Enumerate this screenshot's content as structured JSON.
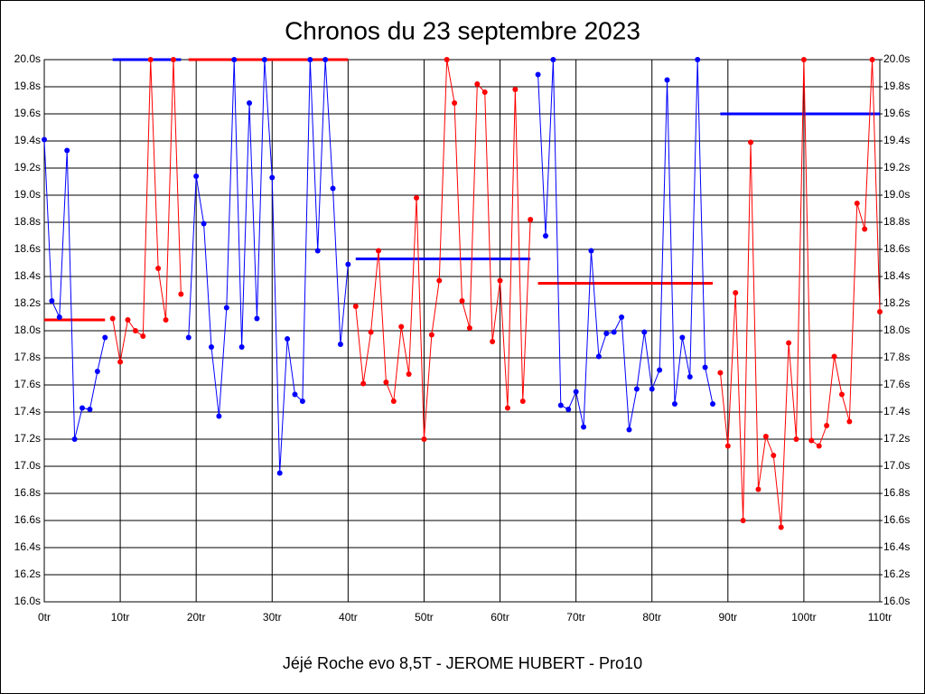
{
  "chart_data": {
    "type": "line",
    "title": "Chronos du 23 septembre 2023",
    "x_label": "Jéjé Roche evo 8,5T - JEROME HUBERT - Pro10",
    "xlim": [
      0,
      110
    ],
    "xticks": [
      {
        "value": 0,
        "label": "0tr"
      },
      {
        "value": 10,
        "label": "10tr"
      },
      {
        "value": 20,
        "label": "20tr"
      },
      {
        "value": 30,
        "label": "30tr"
      },
      {
        "value": 40,
        "label": "40tr"
      },
      {
        "value": 50,
        "label": "50tr"
      },
      {
        "value": 60,
        "label": "60tr"
      },
      {
        "value": 70,
        "label": "70tr"
      },
      {
        "value": 80,
        "label": "80tr"
      },
      {
        "value": 90,
        "label": "90tr"
      },
      {
        "value": 100,
        "label": "100tr"
      },
      {
        "value": 110,
        "label": "110tr"
      }
    ],
    "ylim": [
      16.0,
      20.0
    ],
    "yticks": [
      {
        "value": 16.0,
        "label": "16.0s"
      },
      {
        "value": 16.2,
        "label": "16.2s"
      },
      {
        "value": 16.4,
        "label": "16.4s"
      },
      {
        "value": 16.6,
        "label": "16.6s"
      },
      {
        "value": 16.8,
        "label": "16.8s"
      },
      {
        "value": 17.0,
        "label": "17.0s"
      },
      {
        "value": 17.2,
        "label": "17.2s"
      },
      {
        "value": 17.4,
        "label": "17.4s"
      },
      {
        "value": 17.6,
        "label": "17.6s"
      },
      {
        "value": 17.8,
        "label": "17.8s"
      },
      {
        "value": 18.0,
        "label": "18.0s"
      },
      {
        "value": 18.2,
        "label": "18.2s"
      },
      {
        "value": 18.4,
        "label": "18.4s"
      },
      {
        "value": 18.6,
        "label": "18.6s"
      },
      {
        "value": 18.8,
        "label": "18.8s"
      },
      {
        "value": 19.0,
        "label": "19.0s"
      },
      {
        "value": 19.2,
        "label": "19.2s"
      },
      {
        "value": 19.4,
        "label": "19.4s"
      },
      {
        "value": 19.6,
        "label": "19.6s"
      },
      {
        "value": 19.8,
        "label": "19.8s"
      },
      {
        "value": 20.0,
        "label": "20.0s"
      }
    ],
    "y2lim": [
      16.0,
      20.0
    ],
    "y2ticks": [
      {
        "value": 16.0,
        "label": "16.0s"
      },
      {
        "value": 16.2,
        "label": "16.2s"
      },
      {
        "value": 16.4,
        "label": "16.4s"
      },
      {
        "value": 16.6,
        "label": "16.6s"
      },
      {
        "value": 16.8,
        "label": "16.8s"
      },
      {
        "value": 17.0,
        "label": "17.0s"
      },
      {
        "value": 17.2,
        "label": "17.2s"
      },
      {
        "value": 17.4,
        "label": "17.4s"
      },
      {
        "value": 17.6,
        "label": "17.6s"
      },
      {
        "value": 17.8,
        "label": "17.8s"
      },
      {
        "value": 18.0,
        "label": "18.0s"
      },
      {
        "value": 18.2,
        "label": "18.2s"
      },
      {
        "value": 18.4,
        "label": "18.4s"
      },
      {
        "value": 18.6,
        "label": "18.6s"
      },
      {
        "value": 18.8,
        "label": "18.8s"
      },
      {
        "value": 19.0,
        "label": "19.0s"
      },
      {
        "value": 19.2,
        "label": "19.2s"
      },
      {
        "value": 19.4,
        "label": "19.4s"
      },
      {
        "value": 19.6,
        "label": "19.6s"
      },
      {
        "value": 19.8,
        "label": "19.8s"
      },
      {
        "value": 20.0,
        "label": "20.0s"
      }
    ],
    "grid": true,
    "series": [
      {
        "color": "#0000ff",
        "x": [
          0,
          1,
          2,
          3,
          4,
          5,
          6,
          7,
          8
        ],
        "values": [
          19.41,
          18.22,
          18.1,
          19.33,
          17.2,
          17.43,
          17.42,
          17.7,
          17.95
        ]
      },
      {
        "color": "#ff0000",
        "x": [
          9,
          10,
          11,
          12,
          13,
          14,
          15,
          16,
          17,
          18
        ],
        "values": [
          18.09,
          17.77,
          18.08,
          18.0,
          17.96,
          20.0,
          18.46,
          18.08,
          20.0,
          18.27
        ]
      },
      {
        "color": "#0000ff",
        "x": [
          19,
          20,
          21,
          22,
          23,
          24,
          25,
          26,
          27,
          28,
          29,
          30,
          31,
          32,
          33,
          34,
          35,
          36,
          37,
          38,
          39,
          40
        ],
        "values": [
          17.95,
          19.14,
          18.79,
          17.88,
          17.37,
          18.17,
          20.0,
          17.88,
          19.68,
          18.09,
          20.0,
          19.13,
          16.95,
          17.94,
          17.53,
          17.48,
          20.0,
          18.59,
          20.0,
          19.05,
          17.9,
          18.49
        ]
      },
      {
        "color": "#ff0000",
        "x": [
          41,
          42,
          43,
          44,
          45,
          46,
          47,
          48,
          49,
          50,
          51,
          52,
          53,
          54,
          55,
          56,
          57,
          58,
          59,
          60,
          61,
          62,
          63,
          64
        ],
        "values": [
          18.18,
          17.61,
          17.99,
          18.59,
          17.62,
          17.48,
          18.03,
          17.68,
          18.98,
          17.2,
          17.97,
          18.37,
          20.0,
          19.68,
          18.22,
          18.02,
          19.82,
          19.76,
          17.92,
          18.37,
          17.43,
          19.78,
          17.48,
          18.82
        ]
      },
      {
        "color": "#0000ff",
        "x": [
          65,
          66,
          67,
          68,
          69,
          70,
          71,
          72,
          73,
          74,
          75,
          76,
          77,
          78,
          79,
          80,
          81,
          82,
          83,
          84,
          85,
          86,
          87,
          88
        ],
        "values": [
          19.89,
          18.7,
          20.0,
          17.45,
          17.42,
          17.55,
          17.29,
          18.59,
          17.81,
          17.98,
          17.99,
          18.1,
          17.27,
          17.57,
          17.99,
          17.57,
          17.71,
          19.85,
          17.46,
          17.95,
          17.66,
          20.0,
          17.73,
          17.46
        ]
      },
      {
        "color": "#ff0000",
        "x": [
          89,
          90,
          91,
          92,
          93,
          94,
          95,
          96,
          97,
          98,
          99,
          100,
          101,
          102,
          103,
          104,
          105,
          106,
          107,
          108,
          109,
          110
        ],
        "values": [
          17.69,
          17.15,
          18.28,
          16.6,
          19.39,
          16.83,
          17.22,
          17.08,
          16.55,
          17.91,
          17.2,
          20.0,
          17.19,
          17.15,
          17.3,
          17.81,
          17.53,
          17.33,
          18.94,
          18.75,
          20.0,
          18.14
        ]
      }
    ],
    "averages": [
      {
        "color": "#ff0000",
        "x": [
          0,
          8
        ],
        "value": 18.08
      },
      {
        "color": "#0000ff",
        "x": [
          9,
          18
        ],
        "value": 20.0
      },
      {
        "color": "#ff0000",
        "x": [
          19,
          40
        ],
        "value": 20.0
      },
      {
        "color": "#0000ff",
        "x": [
          41,
          64
        ],
        "value": 18.53
      },
      {
        "color": "#ff0000",
        "x": [
          65,
          88
        ],
        "value": 18.35
      },
      {
        "color": "#0000ff",
        "x": [
          89,
          110
        ],
        "value": 19.6
      }
    ]
  }
}
